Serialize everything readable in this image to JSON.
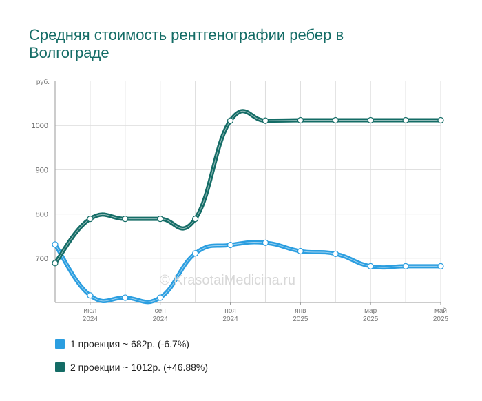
{
  "chart_data": {
    "type": "line",
    "title": "Средняя стоимость рентгенографии ребер в Волгограде",
    "ylabel": "руб.",
    "ylim": [
      600,
      1100
    ],
    "yticks": [
      700,
      800,
      900,
      1000
    ],
    "x_ticks": [
      {
        "month": "июл",
        "year": "2024"
      },
      {
        "month": "сен",
        "year": "2024"
      },
      {
        "month": "ноя",
        "year": "2024"
      },
      {
        "month": "янв",
        "year": "2025"
      },
      {
        "month": "мар",
        "year": "2025"
      },
      {
        "month": "май",
        "year": "2025"
      }
    ],
    "x": [
      "2024-06",
      "2024-07",
      "2024-08",
      "2024-09",
      "2024-10",
      "2024-11",
      "2024-12",
      "2025-01",
      "2025-02",
      "2025-03",
      "2025-04",
      "2025-05"
    ],
    "series": [
      {
        "name": "1 проекция",
        "color": "#2b9ee0",
        "values": [
          731,
          616,
          611,
          611,
          711,
          730,
          735,
          716,
          710,
          682,
          682,
          682
        ]
      },
      {
        "name": "2 проекции",
        "color": "#146c66",
        "values": [
          689,
          789,
          789,
          789,
          789,
          1011,
          1011,
          1012,
          1012,
          1012,
          1012,
          1012
        ]
      }
    ],
    "legend": [
      {
        "label": "1 проекция ~ 682р. (-6.7%)",
        "color": "#2b9ee0"
      },
      {
        "label": "2 проекции ~ 1012р. (+46.88%)",
        "color": "#146c66"
      }
    ],
    "grid": true
  },
  "watermark": "© KrasotaiMedicina.ru"
}
